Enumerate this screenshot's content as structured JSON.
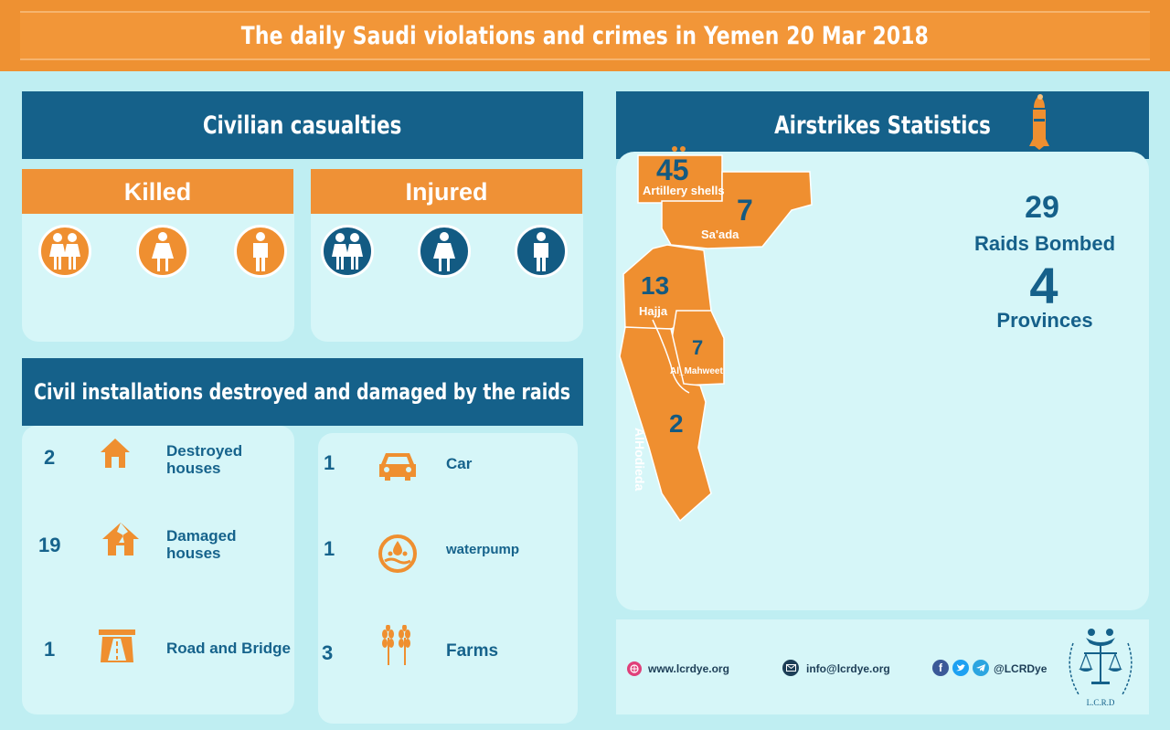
{
  "title": "The daily Saudi violations and crimes in Yemen  20  Mar 2018",
  "casualties": {
    "heading": "Civilian casualties",
    "killed_label": "Killed",
    "injured_label": "Injured",
    "icons": [
      "children-icon",
      "woman-icon",
      "man-icon"
    ]
  },
  "installations": {
    "heading": "Civil installations destroyed and damaged by the raids",
    "left": [
      {
        "count": "2",
        "label_1": "Destroyed",
        "label_2": "houses",
        "icon": "house-icon"
      },
      {
        "count": "19",
        "label_1": "Damaged",
        "label_2": "houses",
        "icon": "damaged-house-icon"
      },
      {
        "count": "1",
        "label_1": "Road and Bridge",
        "label_2": "",
        "icon": "road-icon"
      }
    ],
    "right": [
      {
        "count": "1",
        "label": "Car",
        "icon": "car-icon"
      },
      {
        "count": "1",
        "label": "waterpump",
        "icon": "waterpump-icon"
      },
      {
        "count": "3",
        "label": "Farms",
        "icon": "wheat-icon"
      }
    ]
  },
  "airstrikes": {
    "heading": "Airstrikes Statistics",
    "raids_count": "29",
    "raids_label": "Raids Bombed",
    "provinces_count": "4",
    "provinces_label": "Provinces",
    "map": [
      {
        "count": "45",
        "label": "Artillery shells"
      },
      {
        "count": "7",
        "label": "Sa'ada"
      },
      {
        "count": "13",
        "label": "Hajja"
      },
      {
        "count": "7",
        "label": "Al_Mahweet"
      },
      {
        "count": "2",
        "label": "AlHodieda"
      }
    ]
  },
  "footer": {
    "website": "www.lcrdye.org",
    "email": "info@lcrdye.org",
    "social": "@LCRDye",
    "logo_text": "L.C.R.D"
  },
  "colors": {
    "orange": "#ef9136",
    "blue": "#15618a",
    "panel": "#d6f6f8"
  }
}
